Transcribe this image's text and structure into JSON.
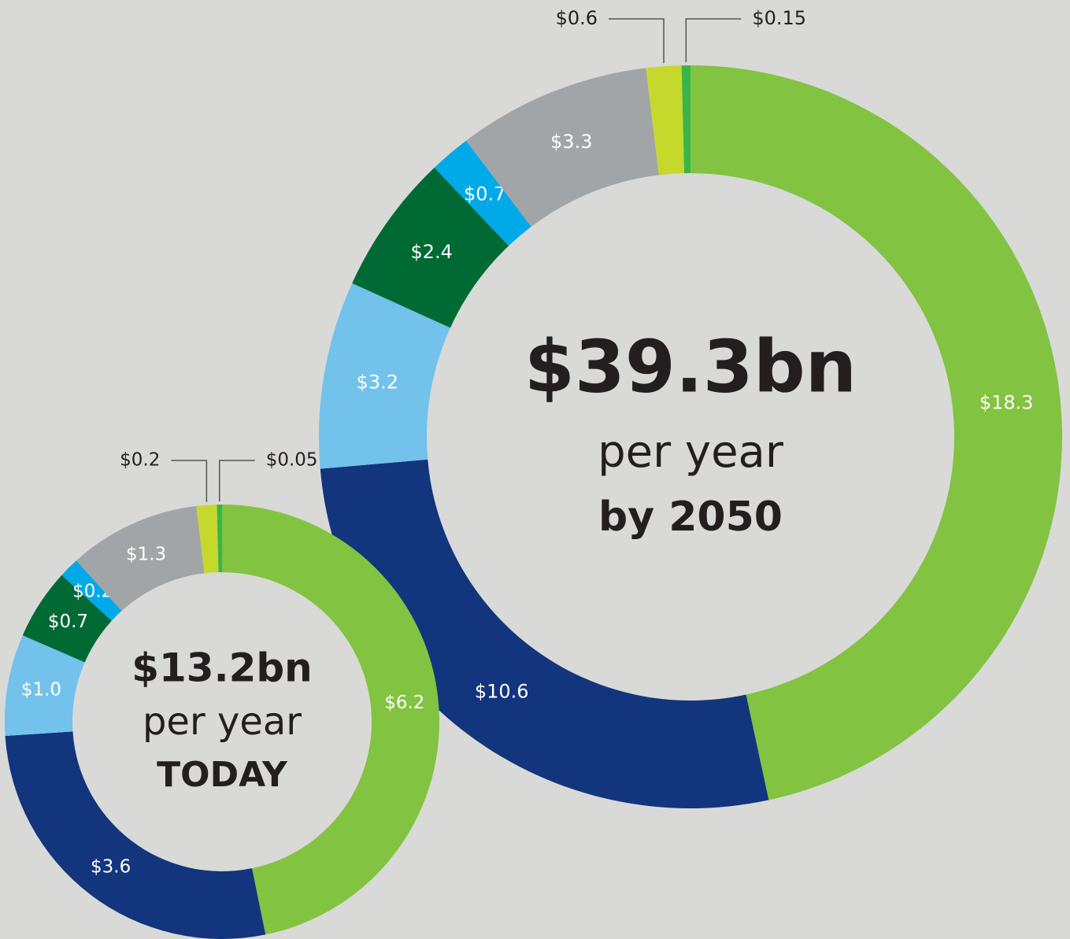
{
  "chart_data": [
    {
      "type": "donut",
      "center_text": [
        "$39.3bn",
        "per year",
        "by 2050"
      ],
      "values": [
        18.3,
        10.6,
        3.2,
        2.4,
        0.7,
        3.3,
        0.6,
        0.15
      ],
      "value_labels": [
        "$18.3",
        "$10.6",
        "$3.2",
        "$2.4",
        "$0.7",
        "$3.3",
        "$0.6",
        "$0.15"
      ],
      "colors": [
        "#82c341",
        "#12357d",
        "#72c2ec",
        "#006a35",
        "#00a9e8",
        "#a2a5a7",
        "#c5d92d",
        "#3ab54a"
      ]
    },
    {
      "type": "donut",
      "center_text": [
        "$13.2bn",
        "per year",
        "TODAY"
      ],
      "values": [
        6.2,
        3.6,
        1.0,
        0.7,
        0.2,
        1.3,
        0.2,
        0.05
      ],
      "value_labels": [
        "$6.2",
        "$3.6",
        "$1.0",
        "$0.7",
        "$0.2",
        "$1.3",
        "$0.2",
        "$0.05"
      ],
      "colors": [
        "#82c341",
        "#12357d",
        "#72c2ec",
        "#006a35",
        "#00a9e8",
        "#a2a5a7",
        "#c5d92d",
        "#3ab54a"
      ]
    }
  ]
}
